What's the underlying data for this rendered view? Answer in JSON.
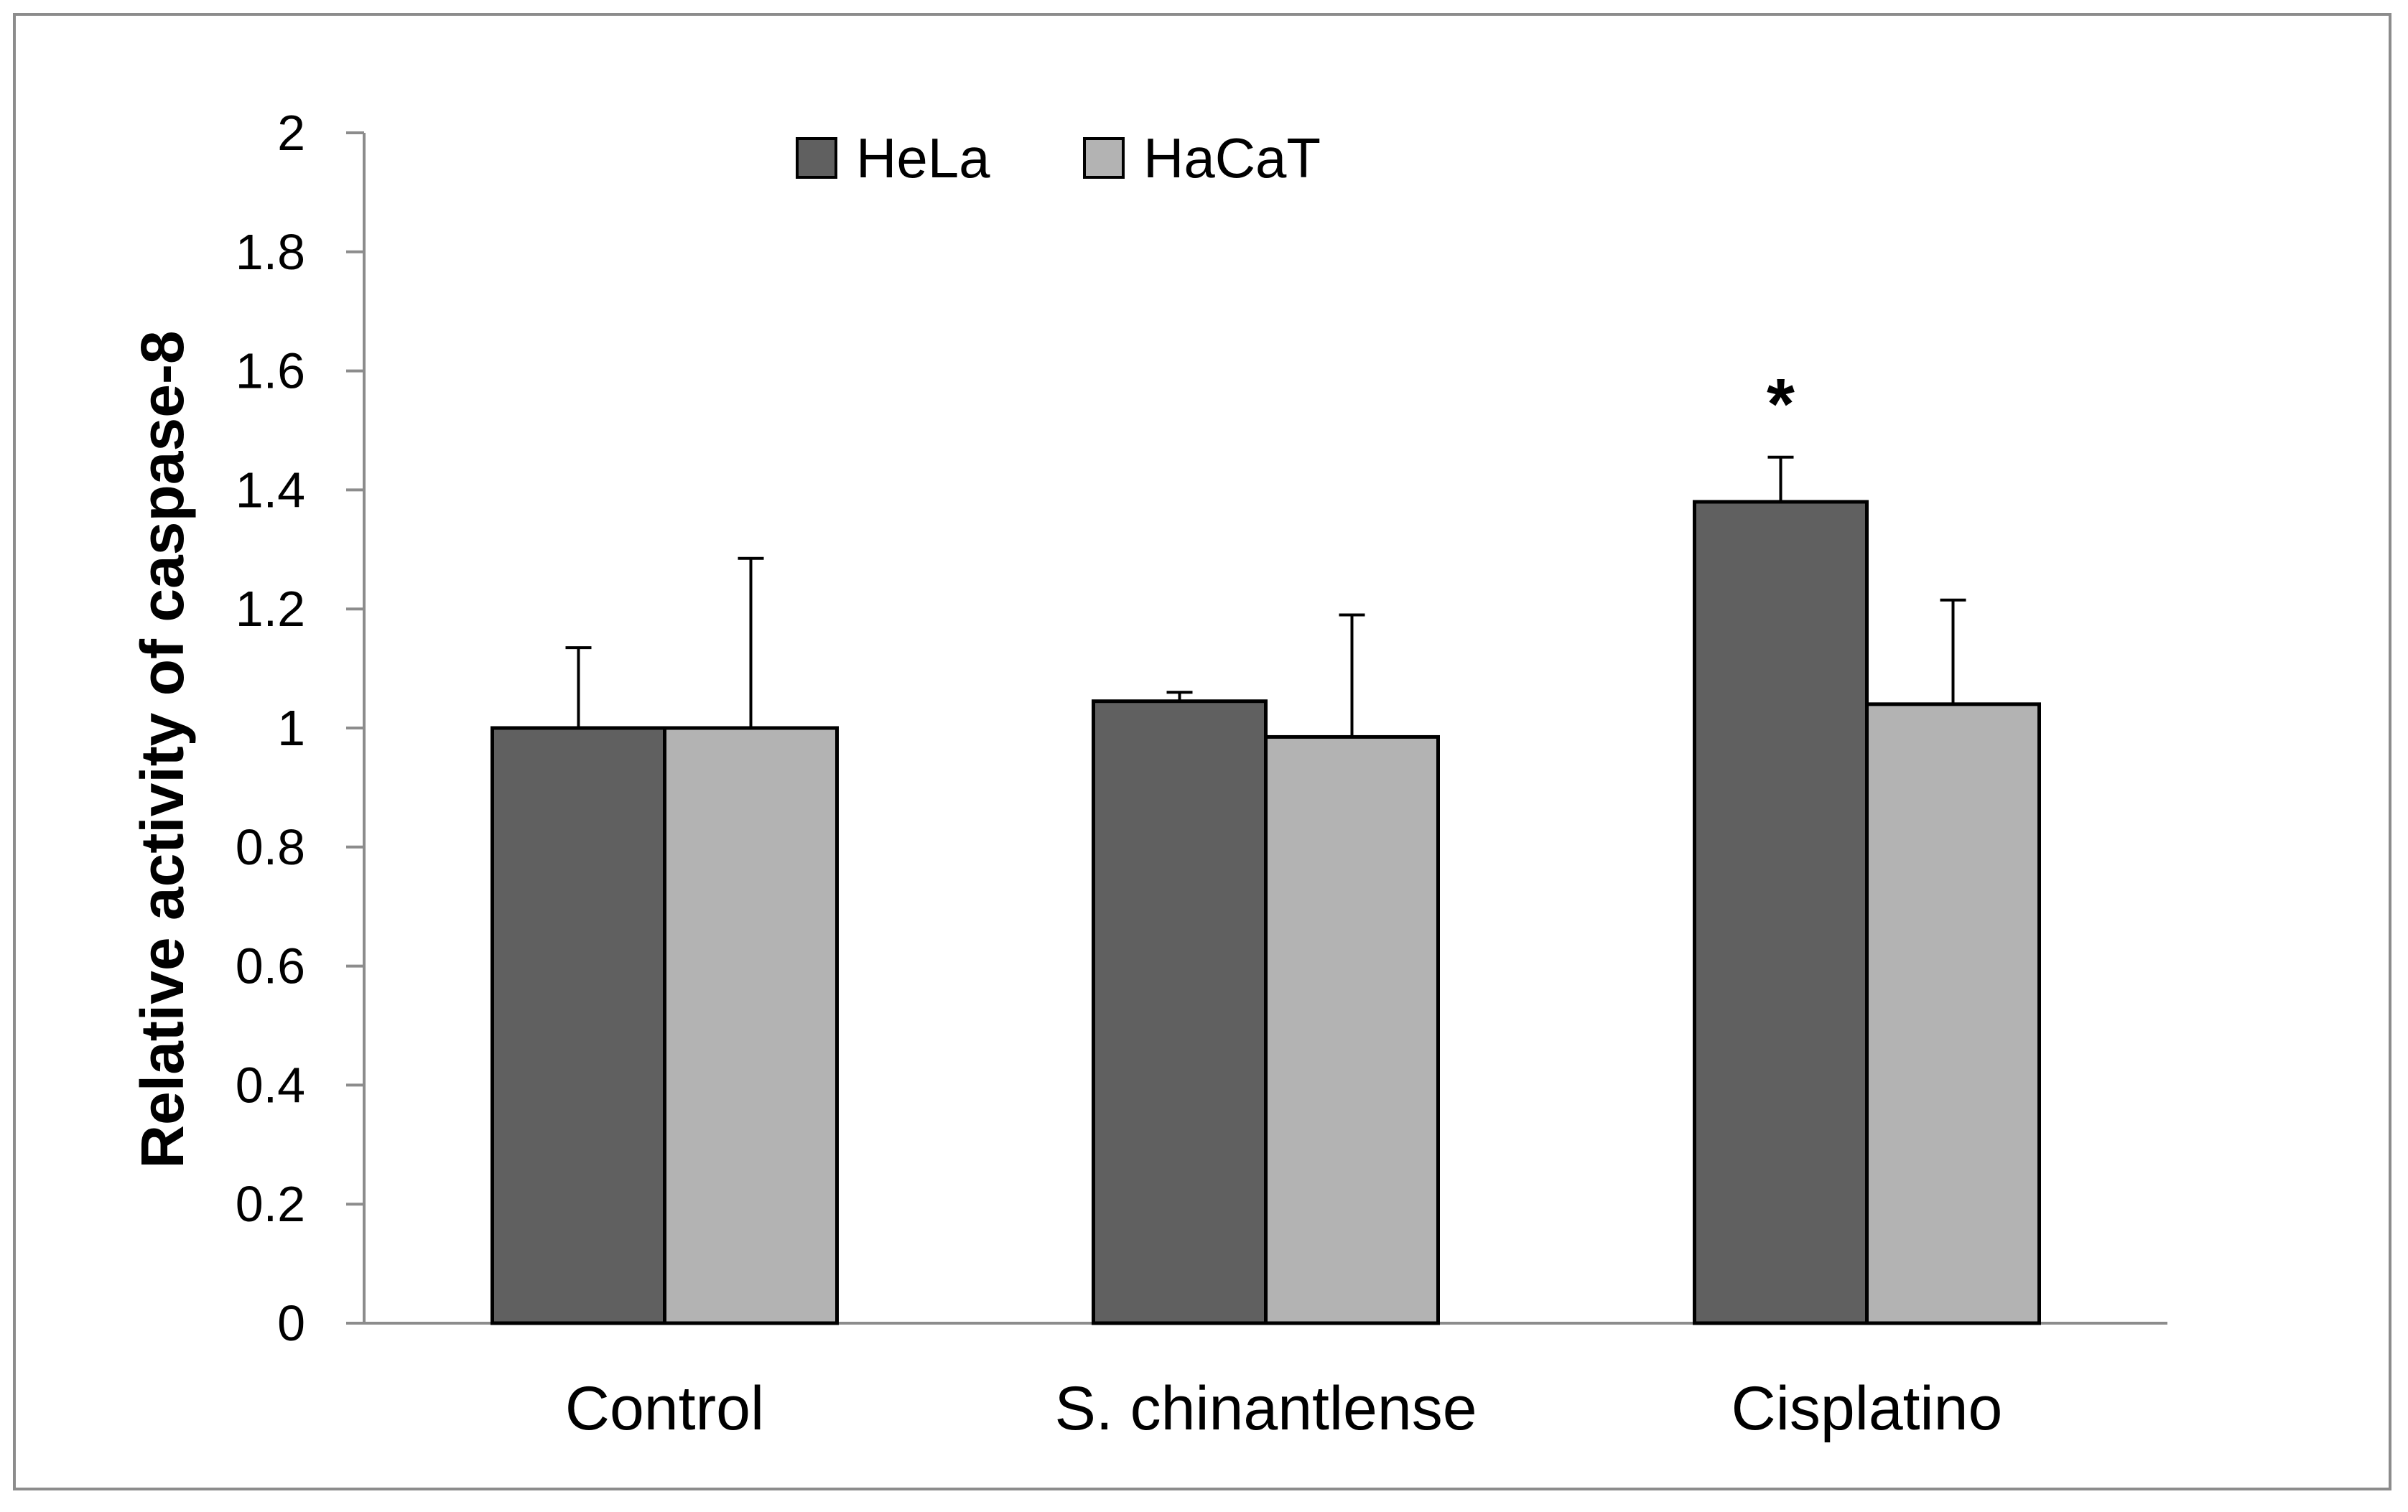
{
  "chart_data": {
    "type": "bar",
    "title": "",
    "xlabel": "",
    "ylabel": "Relative activity of caspase-8",
    "ylim": [
      0,
      2
    ],
    "yticks": [
      "0",
      "0.2",
      "0.4",
      "0.6",
      "0.8",
      "1",
      "1.2",
      "1.4",
      "1.6",
      "1.8",
      "2"
    ],
    "categories": [
      "Control",
      "S. chinantlense",
      "Cisplatino"
    ],
    "series": [
      {
        "name": "HeLa",
        "color": "#606060",
        "values": [
          1.0,
          1.045,
          1.38
        ],
        "errors": [
          0.135,
          0.015,
          0.075
        ]
      },
      {
        "name": "HaCaT",
        "color": "#b3b3b3",
        "values": [
          1.0,
          0.985,
          1.04
        ],
        "errors": [
          0.285,
          0.205,
          0.175
        ]
      }
    ],
    "annotations": [
      {
        "text": "*",
        "category": "Cisplatino",
        "series": "HeLa"
      }
    ],
    "legend_position": "top-center",
    "grid": false
  }
}
